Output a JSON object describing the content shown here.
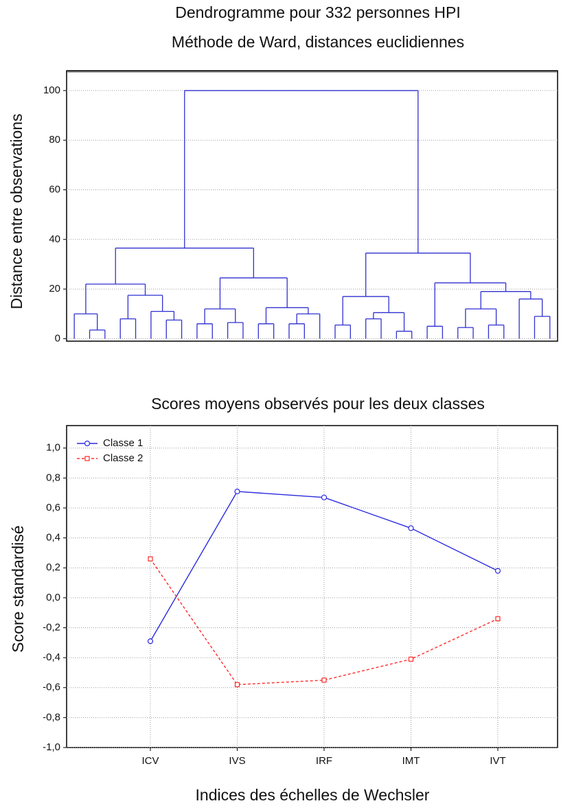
{
  "chart_data": [
    {
      "type": "dendrogram",
      "title": "Dendrogramme pour 332 personnes HPI",
      "subtitle": "Méthode de Ward, distances euclidiennes",
      "ylabel": "Distance entre observations",
      "ylim": [
        -1,
        108
      ],
      "yticks": [
        0,
        20,
        40,
        60,
        80,
        100
      ],
      "grid": true,
      "color": "#2f2fd0",
      "tree": {
        "height": 100,
        "children": [
          {
            "height": 36.5,
            "children": [
              {
                "height": 22,
                "children": [
                  {
                    "height": 10,
                    "children": [
                      {
                        "height": 2.5
                      },
                      {
                        "height": 3.5,
                        "children": [
                          {
                            "height": 1.5
                          },
                          {
                            "height": 2
                          }
                        ]
                      }
                    ]
                  },
                  {
                    "height": 17.5,
                    "children": [
                      {
                        "height": 8,
                        "children": [
                          {
                            "height": 2.5
                          },
                          {
                            "height": 3
                          }
                        ]
                      },
                      {
                        "height": 11,
                        "children": [
                          {
                            "height": 4
                          },
                          {
                            "height": 7.5,
                            "children": [
                              {
                                "height": 2
                              },
                              {
                                "height": 3
                              }
                            ]
                          }
                        ]
                      }
                    ]
                  }
                ]
              },
              {
                "height": 24.5,
                "children": [
                  {
                    "height": 12,
                    "children": [
                      {
                        "height": 6,
                        "children": [
                          {
                            "height": 2
                          },
                          {
                            "height": 3
                          }
                        ]
                      },
                      {
                        "height": 6.5,
                        "children": [
                          {
                            "height": 3
                          },
                          {
                            "height": 5
                          }
                        ]
                      }
                    ]
                  },
                  {
                    "height": 12.5,
                    "children": [
                      {
                        "height": 6,
                        "children": [
                          {
                            "height": 2.5
                          },
                          {
                            "height": 4
                          }
                        ]
                      },
                      {
                        "height": 10,
                        "children": [
                          {
                            "height": 6,
                            "children": [
                              {
                                "height": 3
                              },
                              {
                                "height": 2
                              }
                            ]
                          },
                          {
                            "height": 6.5
                          }
                        ]
                      }
                    ]
                  }
                ]
              }
            ]
          },
          {
            "height": 34.5,
            "children": [
              {
                "height": 17,
                "children": [
                  {
                    "height": 5.5,
                    "children": [
                      {
                        "height": 2
                      },
                      {
                        "height": 3
                      }
                    ]
                  },
                  {
                    "height": 10.5,
                    "children": [
                      {
                        "height": 8,
                        "children": [
                          {
                            "height": 2
                          },
                          {
                            "height": 3
                          }
                        ]
                      },
                      {
                        "height": 3,
                        "children": [
                          {
                            "height": 1.5
                          },
                          {
                            "height": 2
                          }
                        ]
                      }
                    ]
                  }
                ]
              },
              {
                "height": 22.5,
                "children": [
                  {
                    "height": 5,
                    "children": [
                      {
                        "height": 2
                      },
                      {
                        "height": 3
                      }
                    ]
                  },
                  {
                    "height": 19,
                    "children": [
                      {
                        "height": 12,
                        "children": [
                          {
                            "height": 4.5,
                            "children": [
                              {
                                "height": 2
                              },
                              {
                                "height": 3
                              }
                            ]
                          },
                          {
                            "height": 5.5,
                            "children": [
                              {
                                "height": 3
                              },
                              {
                                "height": 4
                              }
                            ]
                          }
                        ]
                      },
                      {
                        "height": 16,
                        "children": [
                          {
                            "height": 3
                          },
                          {
                            "height": 9,
                            "children": [
                              {
                                "height": 4
                              },
                              {
                                "height": 3
                              }
                            ]
                          }
                        ]
                      }
                    ]
                  }
                ]
              }
            ]
          }
        ]
      }
    },
    {
      "type": "line",
      "title": "Scores moyens observés pour les deux classes",
      "xlabel": "Indices des échelles de Wechsler",
      "ylabel": "Score standardisé",
      "categories": [
        "ICV",
        "IVS",
        "IRF",
        "IMT",
        "IVT"
      ],
      "series": [
        {
          "name": "Classe 1",
          "color": "#2a2ae0",
          "marker": "circle",
          "dashed": false,
          "values": [
            -0.29,
            0.71,
            0.67,
            0.465,
            0.18
          ]
        },
        {
          "name": "Classe 2",
          "color": "#ff2a2a",
          "marker": "square",
          "dashed": true,
          "values": [
            0.26,
            -0.58,
            -0.55,
            -0.41,
            -0.14
          ]
        }
      ],
      "ylim": [
        -1.0,
        1.15
      ],
      "yticks": [
        {
          "value": -1.0,
          "label": "-1,0"
        },
        {
          "value": -0.8,
          "label": "-0,8"
        },
        {
          "value": -0.6,
          "label": "-0,6"
        },
        {
          "value": -0.4,
          "label": "-0,4"
        },
        {
          "value": -0.2,
          "label": "-0,2"
        },
        {
          "value": 0.0,
          "label": "0,0"
        },
        {
          "value": 0.2,
          "label": "0,2"
        },
        {
          "value": 0.4,
          "label": "0,4"
        },
        {
          "value": 0.6,
          "label": "0,6"
        },
        {
          "value": 0.8,
          "label": "0,8"
        },
        {
          "value": 1.0,
          "label": "1,0"
        }
      ],
      "grid": true,
      "legend": "upper left"
    }
  ]
}
